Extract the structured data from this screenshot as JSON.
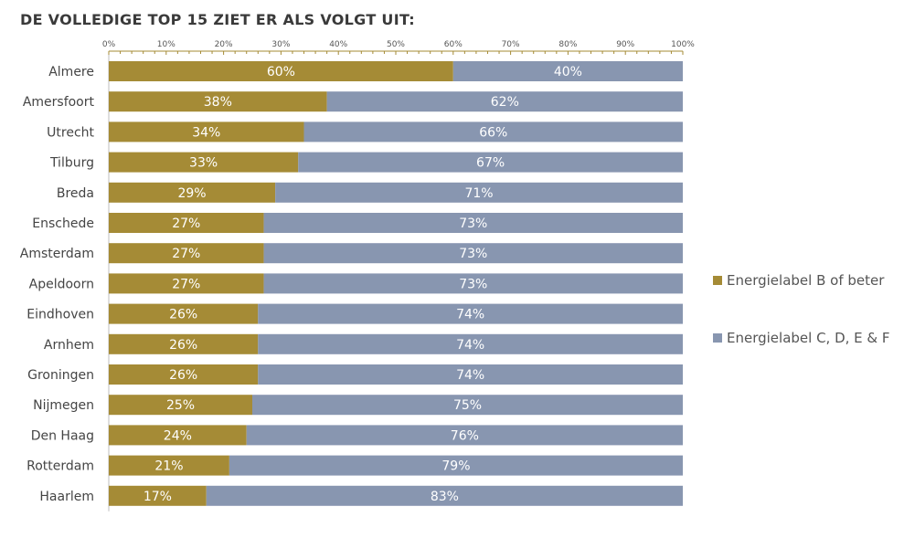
{
  "title": "DE VOLLEDIGE TOP 15 ZIET ER ALS VOLGT UIT:",
  "colors": {
    "series1": "#A58B36",
    "series2": "#8896B0"
  },
  "chart_data": {
    "type": "bar",
    "orientation": "horizontal",
    "stacked": true,
    "title": "DE VOLLEDIGE TOP 15 ZIET ER ALS VOLGT UIT:",
    "xlabel": "",
    "ylabel": "",
    "xlim": [
      0,
      100
    ],
    "ticks": [
      "0%",
      "10%",
      "20%",
      "30%",
      "40%",
      "50%",
      "60%",
      "70%",
      "80%",
      "90%",
      "100%"
    ],
    "categories": [
      "Almere",
      "Amersfoort",
      "Utrecht",
      "Tilburg",
      "Breda",
      "Enschede",
      "Amsterdam",
      "Apeldoorn",
      "Eindhoven",
      "Arnhem",
      "Groningen",
      "Nijmegen",
      "Den Haag",
      "Rotterdam",
      "Haarlem"
    ],
    "series": [
      {
        "name": "Energielabel B of beter",
        "values": [
          60,
          38,
          34,
          33,
          29,
          27,
          27,
          27,
          26,
          26,
          26,
          25,
          24,
          21,
          17
        ]
      },
      {
        "name": "Energielabel C, D, E &  F",
        "values": [
          40,
          62,
          66,
          67,
          71,
          73,
          73,
          73,
          74,
          74,
          74,
          75,
          76,
          79,
          83
        ]
      }
    ],
    "legend": "right"
  }
}
